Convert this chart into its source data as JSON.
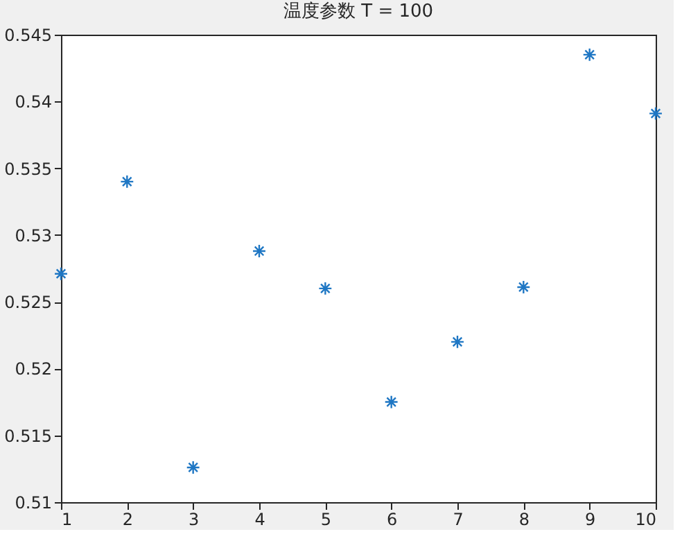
{
  "chart_data": {
    "type": "scatter",
    "title": "温度参数 T = 100",
    "x": [
      1,
      2,
      3,
      4,
      5,
      6,
      7,
      8,
      9,
      10
    ],
    "series": [
      {
        "color": "#1f77c4",
        "values": [
          0.5271,
          0.534,
          0.5126,
          0.5288,
          0.526,
          0.5175,
          0.522,
          0.5261,
          0.5435,
          0.5391
        ]
      }
    ],
    "xlim": [
      1,
      10
    ],
    "xticks": [
      1,
      2,
      3,
      4,
      5,
      6,
      7,
      8,
      9,
      10
    ],
    "ylim": [
      0.51,
      0.545
    ],
    "yticks": [
      0.51,
      0.515,
      0.52,
      0.525,
      0.53,
      0.535,
      0.54,
      0.545
    ],
    "marker": "cross",
    "grid": false
  }
}
